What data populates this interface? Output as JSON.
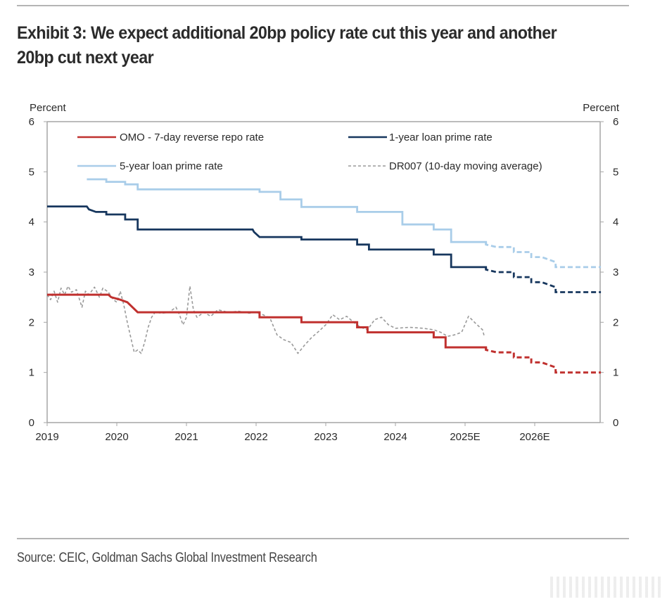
{
  "header": {
    "title": "Exhibit 3: We expect additional 20bp policy rate cut this year and another 20bp cut next year"
  },
  "footer": {
    "source": "Source: CEIC, Goldman Sachs Global Investment Research"
  },
  "chart_data": {
    "type": "line",
    "title": "Exhibit 3: We expect additional 20bp policy rate cut this year and another 20bp cut next year",
    "xlabel": "",
    "ylabel_left": "Percent",
    "ylabel_right": "Percent",
    "xlim": [
      2019.0,
      2026.95
    ],
    "ylim": [
      0,
      6
    ],
    "yticks": [
      0,
      1,
      2,
      3,
      4,
      5,
      6
    ],
    "xticks": [
      {
        "value": 2019,
        "label": "2019"
      },
      {
        "value": 2020,
        "label": "2020"
      },
      {
        "value": 2021,
        "label": "2021"
      },
      {
        "value": 2022,
        "label": "2022"
      },
      {
        "value": 2023,
        "label": "2023"
      },
      {
        "value": 2024,
        "label": "2024"
      },
      {
        "value": 2025,
        "label": "2025E"
      },
      {
        "value": 2026,
        "label": "2026E"
      }
    ],
    "grid": false,
    "legend_placement": "top",
    "forecast_start": 2025.3,
    "series": [
      {
        "name": "OMO - 7-day reverse repo rate",
        "color": "#c0312f",
        "style": "step",
        "points": [
          [
            2019.0,
            2.55
          ],
          [
            2019.88,
            2.55
          ],
          [
            2019.92,
            2.5
          ],
          [
            2020.05,
            2.45
          ],
          [
            2020.15,
            2.4
          ],
          [
            2020.3,
            2.2
          ],
          [
            2022.05,
            2.2
          ],
          [
            2022.05,
            2.1
          ],
          [
            2022.65,
            2.1
          ],
          [
            2022.65,
            2.0
          ],
          [
            2023.45,
            2.0
          ],
          [
            2023.45,
            1.9
          ],
          [
            2023.6,
            1.9
          ],
          [
            2023.6,
            1.8
          ],
          [
            2024.55,
            1.8
          ],
          [
            2024.55,
            1.7
          ],
          [
            2024.72,
            1.7
          ],
          [
            2024.72,
            1.5
          ],
          [
            2025.3,
            1.5
          ],
          [
            2025.3,
            1.45
          ],
          [
            2025.45,
            1.4
          ],
          [
            2025.7,
            1.4
          ],
          [
            2025.7,
            1.3
          ],
          [
            2025.95,
            1.3
          ],
          [
            2025.95,
            1.2
          ],
          [
            2026.1,
            1.2
          ],
          [
            2026.3,
            1.1
          ],
          [
            2026.3,
            1.0
          ],
          [
            2026.95,
            1.0
          ]
        ]
      },
      {
        "name": "1-year loan prime rate",
        "color": "#17375e",
        "style": "step",
        "points": [
          [
            2019.0,
            4.31
          ],
          [
            2019.57,
            4.31
          ],
          [
            2019.6,
            4.25
          ],
          [
            2019.7,
            4.2
          ],
          [
            2019.85,
            4.2
          ],
          [
            2019.85,
            4.15
          ],
          [
            2020.12,
            4.15
          ],
          [
            2020.12,
            4.05
          ],
          [
            2020.3,
            4.05
          ],
          [
            2020.3,
            3.85
          ],
          [
            2021.95,
            3.85
          ],
          [
            2021.97,
            3.8
          ],
          [
            2022.05,
            3.7
          ],
          [
            2022.65,
            3.7
          ],
          [
            2022.65,
            3.65
          ],
          [
            2023.45,
            3.65
          ],
          [
            2023.45,
            3.55
          ],
          [
            2023.62,
            3.55
          ],
          [
            2023.62,
            3.45
          ],
          [
            2024.55,
            3.45
          ],
          [
            2024.55,
            3.35
          ],
          [
            2024.8,
            3.35
          ],
          [
            2024.8,
            3.1
          ],
          [
            2025.3,
            3.1
          ],
          [
            2025.3,
            3.05
          ],
          [
            2025.45,
            3.0
          ],
          [
            2025.7,
            3.0
          ],
          [
            2025.7,
            2.9
          ],
          [
            2025.95,
            2.9
          ],
          [
            2025.95,
            2.8
          ],
          [
            2026.1,
            2.8
          ],
          [
            2026.3,
            2.7
          ],
          [
            2026.3,
            2.6
          ],
          [
            2026.95,
            2.6
          ]
        ]
      },
      {
        "name": "5-year loan prime rate",
        "color": "#a9cde9",
        "style": "step",
        "points": [
          [
            2019.57,
            4.85
          ],
          [
            2019.85,
            4.85
          ],
          [
            2019.85,
            4.8
          ],
          [
            2020.12,
            4.8
          ],
          [
            2020.12,
            4.75
          ],
          [
            2020.3,
            4.75
          ],
          [
            2020.3,
            4.65
          ],
          [
            2022.05,
            4.65
          ],
          [
            2022.05,
            4.6
          ],
          [
            2022.35,
            4.6
          ],
          [
            2022.35,
            4.45
          ],
          [
            2022.65,
            4.45
          ],
          [
            2022.65,
            4.3
          ],
          [
            2023.45,
            4.3
          ],
          [
            2023.45,
            4.2
          ],
          [
            2024.1,
            4.2
          ],
          [
            2024.1,
            3.95
          ],
          [
            2024.55,
            3.95
          ],
          [
            2024.55,
            3.85
          ],
          [
            2024.8,
            3.85
          ],
          [
            2024.8,
            3.6
          ],
          [
            2025.3,
            3.6
          ],
          [
            2025.3,
            3.55
          ],
          [
            2025.45,
            3.5
          ],
          [
            2025.7,
            3.5
          ],
          [
            2025.7,
            3.4
          ],
          [
            2025.95,
            3.4
          ],
          [
            2025.95,
            3.3
          ],
          [
            2026.1,
            3.3
          ],
          [
            2026.3,
            3.2
          ],
          [
            2026.3,
            3.1
          ],
          [
            2026.95,
            3.1
          ]
        ]
      },
      {
        "name": "DR007 (10-day moving average)",
        "color": "#9a9a9a",
        "style": "dashed",
        "points": [
          [
            2019.0,
            2.55
          ],
          [
            2019.05,
            2.45
          ],
          [
            2019.1,
            2.62
          ],
          [
            2019.15,
            2.4
          ],
          [
            2019.2,
            2.68
          ],
          [
            2019.25,
            2.55
          ],
          [
            2019.3,
            2.72
          ],
          [
            2019.35,
            2.6
          ],
          [
            2019.42,
            2.65
          ],
          [
            2019.5,
            2.3
          ],
          [
            2019.55,
            2.62
          ],
          [
            2019.6,
            2.55
          ],
          [
            2019.68,
            2.7
          ],
          [
            2019.75,
            2.5
          ],
          [
            2019.8,
            2.68
          ],
          [
            2019.88,
            2.6
          ],
          [
            2019.95,
            2.45
          ],
          [
            2020.0,
            2.4
          ],
          [
            2020.05,
            2.62
          ],
          [
            2020.1,
            2.35
          ],
          [
            2020.15,
            2.0
          ],
          [
            2020.2,
            1.7
          ],
          [
            2020.25,
            1.4
          ],
          [
            2020.3,
            1.45
          ],
          [
            2020.35,
            1.38
          ],
          [
            2020.4,
            1.6
          ],
          [
            2020.45,
            1.9
          ],
          [
            2020.5,
            2.1
          ],
          [
            2020.55,
            2.2
          ],
          [
            2020.65,
            2.18
          ],
          [
            2020.75,
            2.2
          ],
          [
            2020.85,
            2.3
          ],
          [
            2020.9,
            2.15
          ],
          [
            2020.95,
            1.95
          ],
          [
            2021.0,
            2.1
          ],
          [
            2021.05,
            2.72
          ],
          [
            2021.1,
            2.25
          ],
          [
            2021.15,
            2.1
          ],
          [
            2021.25,
            2.2
          ],
          [
            2021.35,
            2.12
          ],
          [
            2021.45,
            2.25
          ],
          [
            2021.6,
            2.2
          ],
          [
            2021.75,
            2.22
          ],
          [
            2021.9,
            2.18
          ],
          [
            2022.0,
            2.2
          ],
          [
            2022.1,
            2.15
          ],
          [
            2022.2,
            2.08
          ],
          [
            2022.3,
            1.75
          ],
          [
            2022.4,
            1.65
          ],
          [
            2022.5,
            1.6
          ],
          [
            2022.6,
            1.38
          ],
          [
            2022.7,
            1.55
          ],
          [
            2022.8,
            1.7
          ],
          [
            2022.9,
            1.82
          ],
          [
            2023.0,
            1.95
          ],
          [
            2023.1,
            2.15
          ],
          [
            2023.2,
            2.05
          ],
          [
            2023.3,
            2.12
          ],
          [
            2023.4,
            2.0
          ],
          [
            2023.5,
            1.9
          ],
          [
            2023.6,
            1.85
          ],
          [
            2023.7,
            2.05
          ],
          [
            2023.8,
            2.1
          ],
          [
            2023.9,
            1.95
          ],
          [
            2024.0,
            1.88
          ],
          [
            2024.2,
            1.9
          ],
          [
            2024.4,
            1.88
          ],
          [
            2024.55,
            1.85
          ],
          [
            2024.65,
            1.8
          ],
          [
            2024.75,
            1.72
          ],
          [
            2024.85,
            1.75
          ],
          [
            2024.95,
            1.8
          ],
          [
            2025.05,
            2.12
          ],
          [
            2025.15,
            1.98
          ],
          [
            2025.25,
            1.85
          ],
          [
            2025.28,
            1.7
          ]
        ]
      }
    ]
  }
}
